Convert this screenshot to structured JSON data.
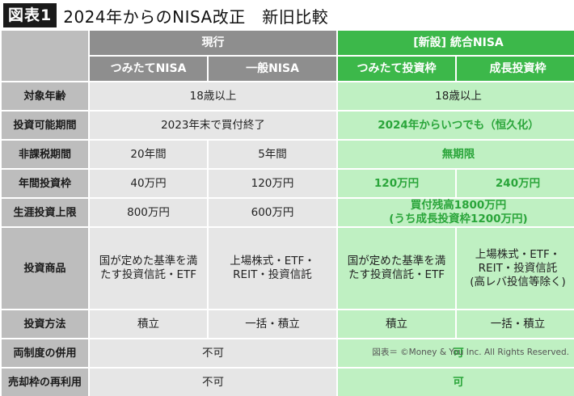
{
  "header": {
    "badge": "図表1",
    "title": "2024年からのNISA改正　新旧比較"
  },
  "columns": {
    "old_group": "現行",
    "new_group": "[新設] 統合NISA",
    "old_1": "つみたてNISA",
    "old_2": "一般NISA",
    "new_1": "つみたて投資枠",
    "new_2": "成長投資枠"
  },
  "rows": {
    "age": {
      "label": "対象年齢",
      "old": "18歳以上",
      "new": "18歳以上"
    },
    "period": {
      "label": "投資可能期間",
      "old": "2023年末で買付終了",
      "new": "2024年からいつでも（恒久化）"
    },
    "taxfree": {
      "label": "非課税期間",
      "old_1": "20年間",
      "old_2": "5年間",
      "new": "無期限"
    },
    "annual": {
      "label": "年間投資枠",
      "old_1": "40万円",
      "old_2": "120万円",
      "new_1": "120万円",
      "new_2": "240万円"
    },
    "lifetime": {
      "label": "生涯投資上限",
      "old_1": "800万円",
      "old_2": "600万円",
      "new_line1": "買付残高1800万円",
      "new_line2": "(うち成長投資枠1200万円)"
    },
    "products": {
      "label": "投資商品",
      "old_1_l1": "国が定めた基準を満",
      "old_1_l2": "たす投資信託・ETF",
      "old_2_l1": "上場株式・ETF・",
      "old_2_l2": "REIT・投資信託",
      "new_1_l1": "国が定めた基準を満",
      "new_1_l2": "たす投資信託・ETF",
      "new_2_l1": "上場株式・ETF・",
      "new_2_l2": "REIT・投資信託",
      "new_2_l3": "(高レバ投信等除く)"
    },
    "method": {
      "label": "投資方法",
      "old_1": "積立",
      "old_2": "一括・積立",
      "new_1": "積立",
      "new_2": "一括・積立"
    },
    "combined": {
      "label": "両制度の併用",
      "old": "不可",
      "new": "可"
    },
    "reuse": {
      "label": "売却枠の再利用",
      "old": "不可",
      "new": "可"
    }
  },
  "footer": {
    "credit": "図表＝ ©Money & You Inc. All Rights Reserved."
  }
}
